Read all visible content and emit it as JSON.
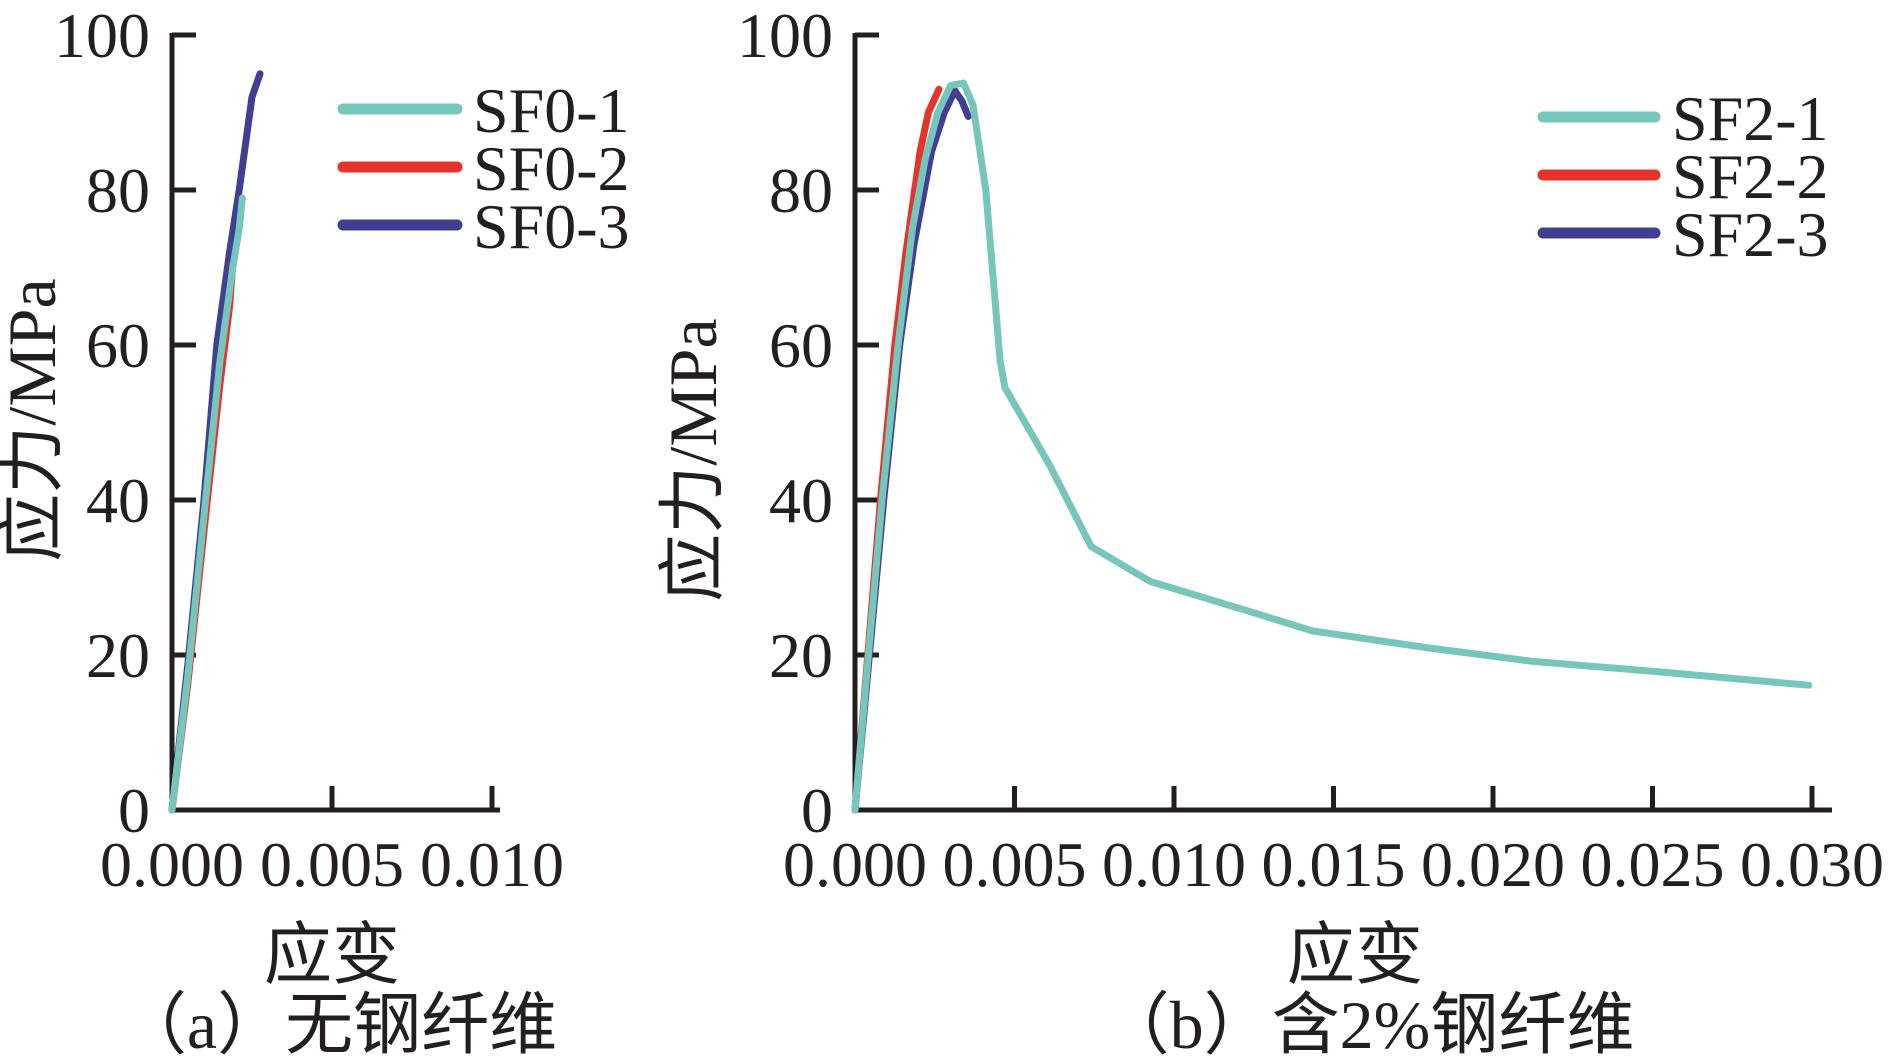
{
  "figure": {
    "background": "#ffffff",
    "axis_color": "#231f20",
    "text_color": "#231f20"
  },
  "chart_data": [
    {
      "id": "a",
      "type": "line",
      "caption": "（a）无钢纤维",
      "xlabel": "应变",
      "ylabel": "应力/MPa",
      "xlim": [
        0,
        0.01025
      ],
      "ylim": [
        0,
        100
      ],
      "grid": false,
      "legend_position": "upper-right-inside",
      "x_tick_values": [
        0.0,
        0.005,
        0.01
      ],
      "x_tick_labels": [
        "0.000",
        "0.005",
        "0.010"
      ],
      "y_tick_values": [
        0,
        20,
        40,
        60,
        80,
        100
      ],
      "y_tick_labels": [
        "0",
        "20",
        "40",
        "60",
        "80",
        "100"
      ],
      "series": [
        {
          "name": "SF0-1",
          "color": "#76c6bc",
          "points": [
            [
              0,
              0
            ],
            [
              0.0005,
              17.5
            ],
            [
              0.001,
              38
            ],
            [
              0.0015,
              58
            ],
            [
              0.0019,
              70
            ],
            [
              0.0021,
              75
            ],
            [
              0.0022,
              79
            ]
          ]
        },
        {
          "name": "SF0-2",
          "color": "#e5342b",
          "points": [
            [
              0,
              0
            ],
            [
              0.0005,
              16.5
            ],
            [
              0.001,
              36
            ],
            [
              0.0015,
              55
            ],
            [
              0.0018,
              65
            ],
            [
              0.0019,
              70.5
            ]
          ]
        },
        {
          "name": "SF0-3",
          "color": "#403f92",
          "points": [
            [
              0,
              0
            ],
            [
              0.0005,
              19
            ],
            [
              0.001,
              40
            ],
            [
              0.0014,
              60
            ],
            [
              0.0018,
              72
            ],
            [
              0.0021,
              80
            ],
            [
              0.0025,
              92
            ],
            [
              0.00275,
              95
            ]
          ]
        }
      ]
    },
    {
      "id": "b",
      "type": "line",
      "caption": "（b）含2%钢纤维",
      "xlabel": "应变",
      "ylabel": "应力/MPa",
      "xlim": [
        0,
        0.0307
      ],
      "ylim": [
        0,
        100
      ],
      "grid": false,
      "legend_position": "upper-right-inside",
      "x_tick_values": [
        0.0,
        0.005,
        0.01,
        0.015,
        0.02,
        0.025,
        0.03
      ],
      "x_tick_labels": [
        "0.000",
        "0.005",
        "0.010",
        "0.015",
        "0.020",
        "0.025",
        "0.030"
      ],
      "y_tick_values": [
        0,
        20,
        40,
        60,
        80,
        100
      ],
      "y_tick_labels": [
        "0",
        "20",
        "40",
        "60",
        "80",
        "100"
      ],
      "series": [
        {
          "name": "SF2-1",
          "color": "#76c6bc",
          "points": [
            [
              0,
              0
            ],
            [
              0.00042,
              20
            ],
            [
              0.00085,
              40
            ],
            [
              0.00135,
              60
            ],
            [
              0.0018,
              75
            ],
            [
              0.0022,
              84
            ],
            [
              0.0026,
              90
            ],
            [
              0.003,
              93.5
            ],
            [
              0.0034,
              93.8
            ],
            [
              0.0037,
              91
            ],
            [
              0.0041,
              80
            ],
            [
              0.00455,
              58
            ],
            [
              0.0047,
              54.5
            ],
            [
              0.0061,
              44.5
            ],
            [
              0.0074,
              34
            ],
            [
              0.00925,
              29.5
            ],
            [
              0.0123,
              25.7
            ],
            [
              0.01435,
              23.1
            ],
            [
              0.018,
              20.9
            ],
            [
              0.0212,
              19.2
            ],
            [
              0.025,
              17.9
            ],
            [
              0.0299,
              16.1
            ]
          ]
        },
        {
          "name": "SF2-2",
          "color": "#e5342b",
          "points": [
            [
              0,
              0
            ],
            [
              0.0004,
              20
            ],
            [
              0.0008,
              40
            ],
            [
              0.00125,
              60
            ],
            [
              0.0016,
              72
            ],
            [
              0.00204,
              85
            ],
            [
              0.0023,
              90
            ],
            [
              0.00263,
              93
            ]
          ]
        },
        {
          "name": "SF2-3",
          "color": "#403f92",
          "points": [
            [
              0,
              0
            ],
            [
              0.00045,
              20
            ],
            [
              0.0009,
              40
            ],
            [
              0.0014,
              60
            ],
            [
              0.00185,
              73
            ],
            [
              0.0024,
              85
            ],
            [
              0.0028,
              90
            ],
            [
              0.00313,
              92.8
            ],
            [
              0.00335,
              91.5
            ],
            [
              0.00355,
              89.5
            ]
          ]
        }
      ]
    }
  ]
}
